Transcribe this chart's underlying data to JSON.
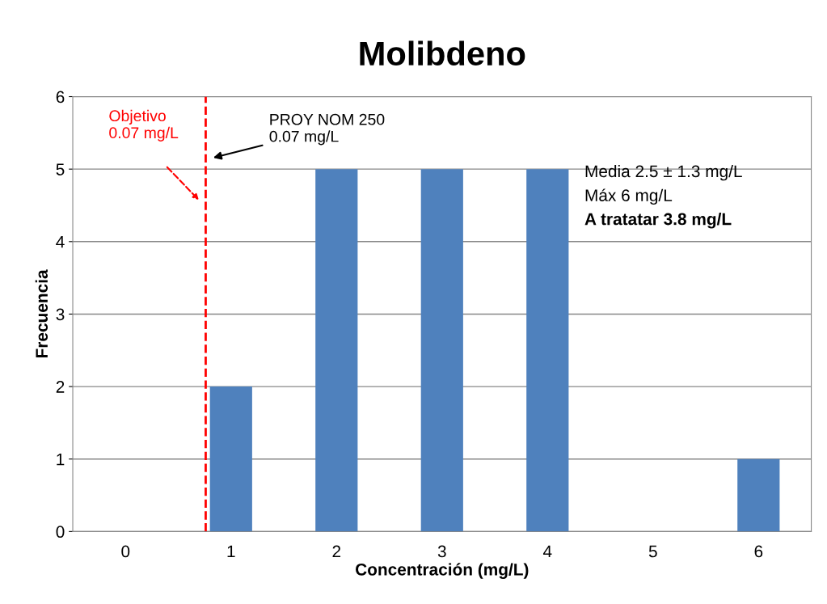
{
  "chart_data": {
    "type": "bar",
    "title": "Molibdeno",
    "xlabel": "Concentración (mg/L)",
    "ylabel": "Frecuencia",
    "x": [
      0,
      1,
      2,
      3,
      4,
      5,
      6
    ],
    "values": [
      0,
      2,
      5,
      5,
      5,
      0,
      1
    ],
    "color": "#4f81bd",
    "xlim": [
      -0.5,
      6.5
    ],
    "xticks": [
      0,
      1,
      2,
      3,
      4,
      5,
      6
    ],
    "ylim": [
      0,
      6
    ],
    "yticks": [
      0,
      1,
      2,
      3,
      4,
      5,
      6
    ],
    "grid": "y",
    "ref_lines": [
      {
        "axis": "x",
        "value": 0.76,
        "label": "Objetivo\n0.07 mg/L",
        "color": "#ff0000",
        "line_style": "dashed"
      }
    ],
    "annotations": [
      "PROY NOM 250\n0.07 mg/L",
      "Media 2.5 ± 1.3 mg/L",
      "Máx 6 mg/L",
      "A tratatar 3.8 mg/L"
    ]
  }
}
